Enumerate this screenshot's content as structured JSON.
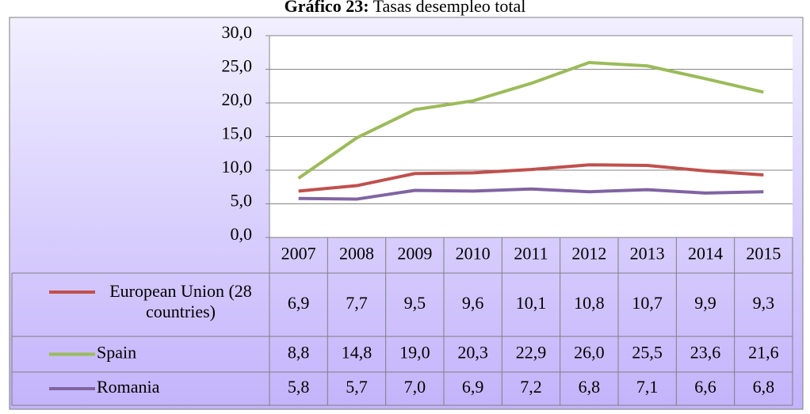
{
  "chart_data": {
    "type": "line",
    "title_label": "Gráfico 23:",
    "title": "Tasas desempleo total",
    "categories": [
      "2007",
      "2008",
      "2009",
      "2010",
      "2011",
      "2012",
      "2013",
      "2014",
      "2015"
    ],
    "series": [
      {
        "name": "European Union (28 countries)",
        "color": "#c0504d",
        "values": [
          6.9,
          7.7,
          9.5,
          9.6,
          10.1,
          10.8,
          10.7,
          9.9,
          9.3
        ],
        "value_labels": [
          "6,9",
          "7,7",
          "9,5",
          "9,6",
          "10,1",
          "10,8",
          "10,7",
          "9,9",
          "9,3"
        ]
      },
      {
        "name": "Spain",
        "color": "#9bbb59",
        "values": [
          8.8,
          14.8,
          19.0,
          20.3,
          22.9,
          26.0,
          25.5,
          23.6,
          21.6
        ],
        "value_labels": [
          "8,8",
          "14,8",
          "19,0",
          "20,3",
          "22,9",
          "26,0",
          "25,5",
          "23,6",
          "21,6"
        ]
      },
      {
        "name": "Romania",
        "color": "#8064a2",
        "values": [
          5.8,
          5.7,
          7.0,
          6.9,
          7.2,
          6.8,
          7.1,
          6.6,
          6.8
        ],
        "value_labels": [
          "5,8",
          "5,7",
          "7,0",
          "6,9",
          "7,2",
          "6,8",
          "7,1",
          "6,6",
          "6,8"
        ]
      }
    ],
    "ylim": [
      0,
      30
    ],
    "yticks": [
      {
        "value": 0,
        "label": "0,0"
      },
      {
        "value": 5,
        "label": "5,0"
      },
      {
        "value": 10,
        "label": "10,0"
      },
      {
        "value": 15,
        "label": "15,0"
      },
      {
        "value": 20,
        "label": "20,0"
      },
      {
        "value": 25,
        "label": "25,0"
      },
      {
        "value": 30,
        "label": "30,0"
      }
    ],
    "grid": true
  }
}
